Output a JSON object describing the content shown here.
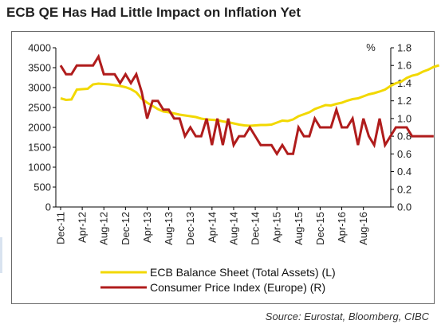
{
  "title": "ECB QE Has Had Little Impact on Inflation Yet",
  "source": "Source: Eurostat, Bloomberg, CIBC",
  "chart_data": {
    "type": "line",
    "title": "ECB QE Has Had Little Impact on Inflation Yet",
    "left_axis": {
      "ylim": [
        0,
        4000
      ],
      "ticks": [
        "0",
        "500",
        "1000",
        "1500",
        "2000",
        "2500",
        "3000",
        "3500",
        "4000"
      ]
    },
    "right_axis": {
      "unit": "%",
      "ylim": [
        0,
        1.8
      ],
      "ticks": [
        "0.0",
        "0.2",
        "0.4",
        "0.6",
        "0.8",
        "1.0",
        "1.2",
        "1.4",
        "1.6",
        "1.8"
      ]
    },
    "x_ticks": [
      "Dec-11",
      "Apr-12",
      "Aug-12",
      "Dec-12",
      "Apr-13",
      "Aug-13",
      "Dec-13",
      "Apr-14",
      "Aug-14",
      "Dec-14",
      "Apr-15",
      "Aug-15",
      "Dec-15",
      "Apr-16",
      "Aug-16"
    ],
    "x_start": "Dec-11",
    "grid": false,
    "legend_position": "bottom",
    "series": [
      {
        "name": "ECB Balance Sheet (Total Assets) (L)",
        "axis": "left",
        "color": "#f2d800",
        "values": [
          2730,
          2690,
          2700,
          2950,
          2960,
          2970,
          3080,
          3100,
          3090,
          3080,
          3060,
          3040,
          3010,
          2960,
          2880,
          2720,
          2620,
          2540,
          2460,
          2400,
          2380,
          2350,
          2320,
          2300,
          2280,
          2260,
          2220,
          2200,
          2190,
          2180,
          2150,
          2130,
          2100,
          2070,
          2050,
          2040,
          2050,
          2060,
          2060,
          2070,
          2120,
          2170,
          2160,
          2200,
          2280,
          2330,
          2380,
          2460,
          2510,
          2560,
          2550,
          2590,
          2620,
          2670,
          2710,
          2730,
          2780,
          2830,
          2860,
          2900,
          2950,
          3040,
          3110,
          3150,
          3240,
          3300,
          3330,
          3400,
          3450,
          3520,
          3560
        ]
      },
      {
        "name": "Consumer Price Index (Europe) (R)",
        "axis": "right",
        "color": "#b01c1c",
        "values": [
          1.6,
          1.5,
          1.5,
          1.6,
          1.6,
          1.6,
          1.6,
          1.7,
          1.5,
          1.5,
          1.5,
          1.4,
          1.5,
          1.4,
          1.5,
          1.3,
          1.0,
          1.2,
          1.2,
          1.1,
          1.1,
          1.0,
          1.0,
          0.8,
          0.9,
          0.8,
          0.8,
          1.0,
          0.7,
          1.0,
          0.7,
          1.0,
          0.7,
          0.8,
          0.8,
          0.9,
          0.8,
          0.7,
          0.7,
          0.7,
          0.6,
          0.7,
          0.6,
          0.6,
          0.9,
          0.8,
          0.8,
          1.0,
          0.9,
          0.9,
          0.9,
          1.1,
          0.9,
          0.9,
          1.0,
          0.7,
          1.0,
          0.8,
          0.7,
          1.0,
          0.7,
          0.8,
          0.9,
          0.9,
          0.9,
          0.8,
          0.8,
          0.8,
          0.8,
          0.8
        ]
      }
    ]
  }
}
